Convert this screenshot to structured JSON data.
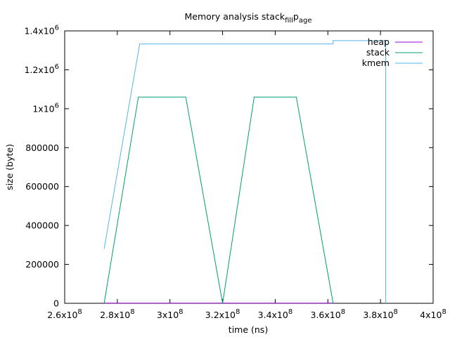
{
  "chart_data": {
    "type": "line",
    "title": "Memory analysis stack",
    "title_sub": "fill",
    "title_mid": "p",
    "title_sub2": "age",
    "xlabel": "time (ns)",
    "ylabel": "size (byte)",
    "xlim": [
      260000000,
      400000000
    ],
    "ylim": [
      0,
      1400000
    ],
    "grid": false,
    "legend_position": "top-right",
    "x_ticks": [
      {
        "value": 260000000,
        "mantissa": "2.6x10",
        "exp": "8"
      },
      {
        "value": 280000000,
        "mantissa": "2.8x10",
        "exp": "8"
      },
      {
        "value": 300000000,
        "mantissa": "3x10",
        "exp": "8"
      },
      {
        "value": 320000000,
        "mantissa": "3.2x10",
        "exp": "8"
      },
      {
        "value": 340000000,
        "mantissa": "3.4x10",
        "exp": "8"
      },
      {
        "value": 360000000,
        "mantissa": "3.6x10",
        "exp": "8"
      },
      {
        "value": 380000000,
        "mantissa": "3.8x10",
        "exp": "8"
      },
      {
        "value": 400000000,
        "mantissa": "4x10",
        "exp": "8"
      }
    ],
    "y_ticks": [
      {
        "value": 0,
        "mantissa": "0",
        "exp": ""
      },
      {
        "value": 200000,
        "mantissa": "200000",
        "exp": ""
      },
      {
        "value": 400000,
        "mantissa": "400000",
        "exp": ""
      },
      {
        "value": 600000,
        "mantissa": "600000",
        "exp": ""
      },
      {
        "value": 800000,
        "mantissa": "800000",
        "exp": ""
      },
      {
        "value": 1000000,
        "mantissa": "1x10",
        "exp": "6"
      },
      {
        "value": 1200000,
        "mantissa": "1.2x10",
        "exp": "6"
      },
      {
        "value": 1400000,
        "mantissa": "1.4x10",
        "exp": "6"
      }
    ],
    "series": [
      {
        "name": "heap",
        "color": "#9400d3",
        "x": [
          275000000,
          362000000
        ],
        "y": [
          1000,
          1000
        ]
      },
      {
        "name": "stack",
        "color": "#009e73",
        "x": [
          275000000,
          288000000,
          306000000,
          320000000,
          332000000,
          348000000,
          362000000
        ],
        "y": [
          0,
          1060000,
          1060000,
          0,
          1060000,
          1060000,
          0
        ]
      },
      {
        "name": "kmem",
        "color": "#56b4e9",
        "x": [
          275000000,
          288500000,
          362000000,
          362000000,
          382000000,
          382000000
        ],
        "y": [
          280000,
          1333000,
          1333000,
          1350000,
          1350000,
          0
        ]
      }
    ]
  }
}
